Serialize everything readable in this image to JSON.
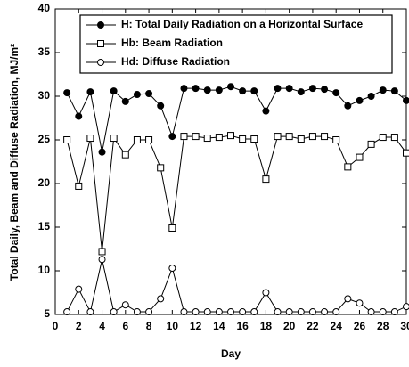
{
  "chart_data": {
    "type": "line",
    "xlabel": "Day",
    "ylabel": "Total Daily, Beam and Diffuse Radiation, MJ/m²",
    "x": [
      1,
      2,
      3,
      4,
      5,
      6,
      7,
      8,
      9,
      10,
      11,
      12,
      13,
      14,
      15,
      16,
      17,
      18,
      19,
      20,
      21,
      22,
      23,
      24,
      25,
      26,
      27,
      28,
      29,
      30
    ],
    "series": [
      {
        "name": "H: Total Daily Radiation on a Horizontal Surface",
        "color": "#000000",
        "marker": "filled-circle",
        "values": [
          30.4,
          27.7,
          30.5,
          23.6,
          30.6,
          29.4,
          30.2,
          30.3,
          28.9,
          25.4,
          30.9,
          30.9,
          30.7,
          30.7,
          31.1,
          30.6,
          30.6,
          28.3,
          30.9,
          30.9,
          30.5,
          30.9,
          30.8,
          30.4,
          28.9,
          29.5,
          30.0,
          30.7,
          30.6,
          29.5
        ]
      },
      {
        "name": "Hb: Beam Radiation",
        "color": "#000000",
        "marker": "open-square",
        "values": [
          25.0,
          19.7,
          25.2,
          12.2,
          25.2,
          23.3,
          25.0,
          25.0,
          21.8,
          14.9,
          25.4,
          25.4,
          25.2,
          25.3,
          25.5,
          25.1,
          25.1,
          20.5,
          25.4,
          25.4,
          25.1,
          25.4,
          25.4,
          25.0,
          21.9,
          23.0,
          24.5,
          25.3,
          25.3,
          23.5
        ]
      },
      {
        "name": "Hd: Diffuse Radiation",
        "color": "#000000",
        "marker": "open-circle",
        "values": [
          5.3,
          7.9,
          5.3,
          11.3,
          5.3,
          6.1,
          5.3,
          5.3,
          6.8,
          10.3,
          5.3,
          5.3,
          5.3,
          5.3,
          5.3,
          5.3,
          5.3,
          7.5,
          5.3,
          5.3,
          5.3,
          5.3,
          5.3,
          5.3,
          6.8,
          6.3,
          5.3,
          5.3,
          5.3,
          5.9
        ]
      }
    ],
    "xlim": [
      0,
      30
    ],
    "xticks": [
      0,
      2,
      4,
      6,
      8,
      10,
      12,
      14,
      16,
      18,
      20,
      22,
      24,
      26,
      28,
      30
    ],
    "ylim": [
      5,
      40
    ],
    "yticks": [
      5,
      10,
      15,
      20,
      25,
      30,
      35,
      40
    ],
    "grid": false,
    "legend": "top"
  }
}
